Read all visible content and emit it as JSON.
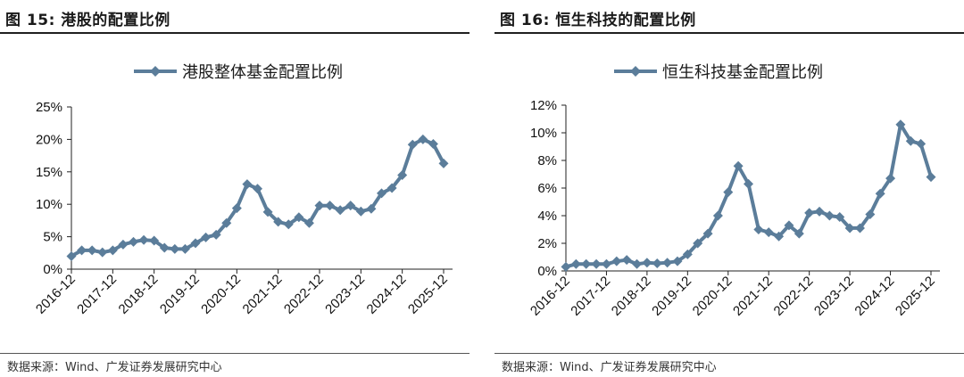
{
  "left": {
    "figure_title": "图 15: 港股的配置比例",
    "source": "数据来源：Wind、广发证券发展研究中心"
  },
  "right": {
    "figure_title": "图 16: 恒生科技的配置比例",
    "source": "数据来源：Wind、广发证券发展研究中心"
  },
  "colors": {
    "series": "#5b7d9a",
    "axis": "#222222",
    "rule": "#1f1f1f"
  },
  "chart_data": [
    {
      "type": "line",
      "title": "",
      "legend": [
        "港股整体基金配置比例"
      ],
      "legend_position": "top",
      "grid": false,
      "x_tick_labels": [
        "2016-12",
        "2017-12",
        "2018-12",
        "2019-12",
        "2020-12",
        "2021-12",
        "2022-12",
        "2023-12",
        "2024-12",
        "2025-12"
      ],
      "y_tick_labels": [
        "0%",
        "5%",
        "10%",
        "15%",
        "20%",
        "25%"
      ],
      "ylim": [
        0,
        25
      ],
      "series": [
        {
          "name": "港股整体基金配置比例",
          "x": [
            "2016-12",
            "2017-03",
            "2017-06",
            "2017-09",
            "2017-12",
            "2018-03",
            "2018-06",
            "2018-09",
            "2018-12",
            "2019-03",
            "2019-06",
            "2019-09",
            "2019-12",
            "2020-03",
            "2020-06",
            "2020-09",
            "2020-12",
            "2021-03",
            "2021-06",
            "2021-09",
            "2021-12",
            "2022-03",
            "2022-06",
            "2022-09",
            "2022-12",
            "2023-03",
            "2023-06",
            "2023-09",
            "2023-12",
            "2024-03",
            "2024-06",
            "2024-09",
            "2024-12",
            "2025-03",
            "2025-06",
            "2025-09",
            "2025-12"
          ],
          "values": [
            2.0,
            2.9,
            2.9,
            2.6,
            2.9,
            3.8,
            4.2,
            4.5,
            4.4,
            3.3,
            3.1,
            3.1,
            4.0,
            4.9,
            5.3,
            7.1,
            9.4,
            13.1,
            12.4,
            8.8,
            7.3,
            6.9,
            8.0,
            7.1,
            9.8,
            9.8,
            9.1,
            9.8,
            8.9,
            9.3,
            11.7,
            12.5,
            14.5,
            19.2,
            20.0,
            19.3,
            16.3
          ]
        }
      ]
    },
    {
      "type": "line",
      "title": "",
      "legend": [
        "恒生科技基金配置比例"
      ],
      "legend_position": "top",
      "grid": false,
      "x_tick_labels": [
        "2016-12",
        "2017-12",
        "2018-12",
        "2019-12",
        "2020-12",
        "2021-12",
        "2022-12",
        "2023-12",
        "2024-12",
        "2025-12"
      ],
      "y_tick_labels": [
        "0%",
        "2%",
        "4%",
        "6%",
        "8%",
        "10%",
        "12%"
      ],
      "ylim": [
        0,
        12
      ],
      "series": [
        {
          "name": "恒生科技基金配置比例",
          "x": [
            "2016-12",
            "2017-03",
            "2017-06",
            "2017-09",
            "2017-12",
            "2018-03",
            "2018-06",
            "2018-09",
            "2018-12",
            "2019-03",
            "2019-06",
            "2019-09",
            "2019-12",
            "2020-03",
            "2020-06",
            "2020-09",
            "2020-12",
            "2021-03",
            "2021-06",
            "2021-09",
            "2021-12",
            "2022-03",
            "2022-06",
            "2022-09",
            "2022-12",
            "2023-03",
            "2023-06",
            "2023-09",
            "2023-12",
            "2024-03",
            "2024-06",
            "2024-09",
            "2024-12",
            "2025-03",
            "2025-06",
            "2025-09",
            "2025-12"
          ],
          "values": [
            0.3,
            0.5,
            0.5,
            0.5,
            0.5,
            0.7,
            0.8,
            0.5,
            0.6,
            0.55,
            0.6,
            0.7,
            1.2,
            2.0,
            2.7,
            4.0,
            5.7,
            7.6,
            6.3,
            3.0,
            2.8,
            2.5,
            3.3,
            2.7,
            4.2,
            4.3,
            4.0,
            3.9,
            3.1,
            3.1,
            4.1,
            5.6,
            6.7,
            10.6,
            9.4,
            9.2,
            6.8
          ]
        }
      ]
    }
  ]
}
